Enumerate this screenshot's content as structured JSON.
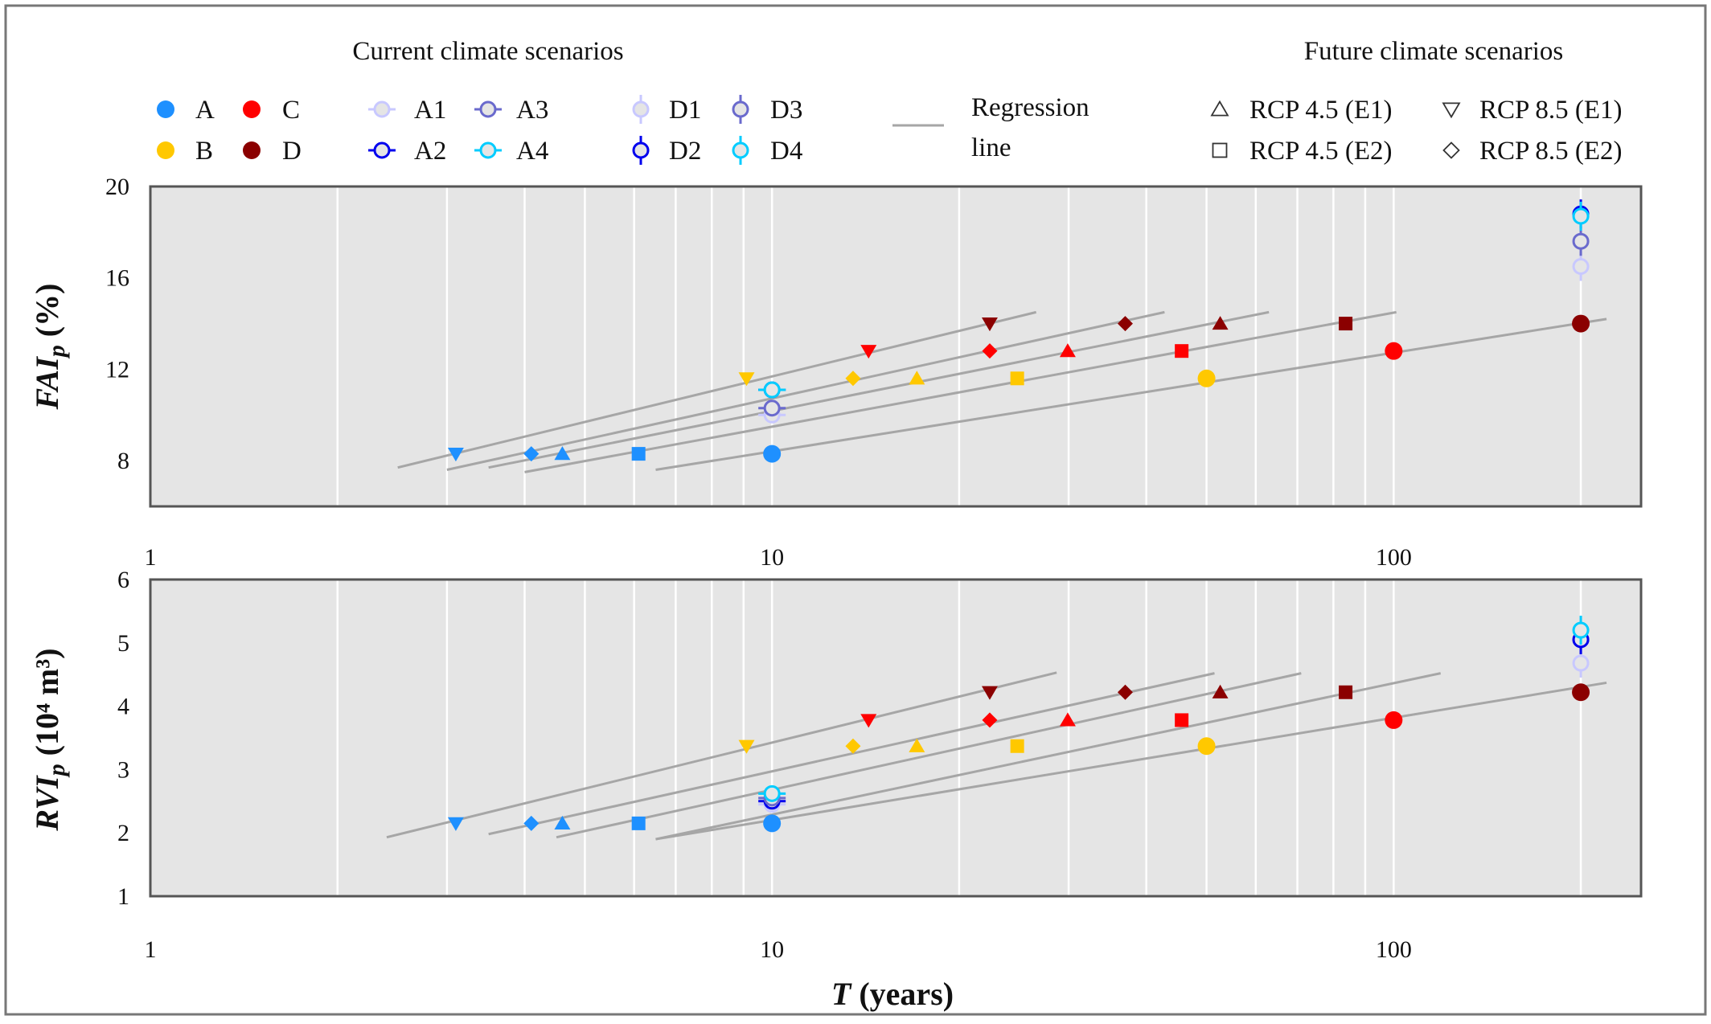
{
  "legend": {
    "current_title": "Current climate scenarios",
    "future_title": "Future climate scenarios",
    "regression_label_1": "Regression",
    "regression_label_2": "line",
    "items": {
      "A": "A",
      "B": "B",
      "C": "C",
      "D": "D",
      "A1": "A1",
      "A2": "A2",
      "A3": "A3",
      "A4": "A4",
      "D1": "D1",
      "D2": "D2",
      "D3": "D3",
      "D4": "D4",
      "rcp45e1": "RCP 4.5 (E1)",
      "rcp85e1": "RCP 8.5 (E1)",
      "rcp45e2": "RCP 4.5 (E2)",
      "rcp85e2": "RCP 8.5 (E2)"
    }
  },
  "colors": {
    "A": "#1E90FF",
    "B": "#FFC800",
    "C": "#FF0000",
    "D": "#8B0000",
    "A1": "#C8C8FF",
    "A2": "#0000EE",
    "A3": "#6A6ACD",
    "A4": "#00CCFF",
    "D1": "#C8C8FF",
    "D2": "#0000EE",
    "D3": "#6A6ACD",
    "D4": "#00CCFF",
    "regression": "#A6A6A6",
    "plot_bg": "#E5E5E5",
    "grid": "#FFFFFF"
  },
  "chart_data": [
    {
      "type": "scatter",
      "ylabel_main": "FAI",
      "ylabel_sub": "p",
      "ylabel_rest": " (%)",
      "xscale": "log",
      "xlim": [
        1,
        250
      ],
      "ylim": [
        6,
        20
      ],
      "yticks": [
        8,
        12,
        16,
        20
      ],
      "xticks": [
        1,
        10,
        100
      ],
      "grid": true,
      "points": [
        {
          "group": "A",
          "marker": "circle",
          "T": 10,
          "y": 8.3
        },
        {
          "group": "B",
          "marker": "circle",
          "T": 50,
          "y": 11.6
        },
        {
          "group": "C",
          "marker": "circle",
          "T": 100,
          "y": 12.8
        },
        {
          "group": "D",
          "marker": "circle",
          "T": 200,
          "y": 14.0
        },
        {
          "group": "A",
          "marker": "triangle-up",
          "T": 4.6,
          "y": 8.3
        },
        {
          "group": "A",
          "marker": "square",
          "T": 6.1,
          "y": 8.3
        },
        {
          "group": "A",
          "marker": "diamond",
          "T": 4.1,
          "y": 8.3
        },
        {
          "group": "A",
          "marker": "triangle-down",
          "T": 3.1,
          "y": 8.3
        },
        {
          "group": "B",
          "marker": "triangle-up",
          "T": 17.1,
          "y": 11.6
        },
        {
          "group": "B",
          "marker": "square",
          "T": 24.8,
          "y": 11.6
        },
        {
          "group": "B",
          "marker": "diamond",
          "T": 13.5,
          "y": 11.6
        },
        {
          "group": "B",
          "marker": "triangle-down",
          "T": 9.1,
          "y": 11.6
        },
        {
          "group": "C",
          "marker": "triangle-up",
          "T": 29.9,
          "y": 12.8
        },
        {
          "group": "C",
          "marker": "square",
          "T": 45.6,
          "y": 12.8
        },
        {
          "group": "C",
          "marker": "diamond",
          "T": 22.4,
          "y": 12.8
        },
        {
          "group": "C",
          "marker": "triangle-down",
          "T": 14.3,
          "y": 12.8
        },
        {
          "group": "D",
          "marker": "triangle-up",
          "T": 52.6,
          "y": 14.0
        },
        {
          "group": "D",
          "marker": "square",
          "T": 83.7,
          "y": 14.0
        },
        {
          "group": "D",
          "marker": "diamond",
          "T": 37.0,
          "y": 14.0
        },
        {
          "group": "D",
          "marker": "triangle-down",
          "T": 22.4,
          "y": 14.0
        },
        {
          "group": "A1",
          "marker": "open-circle-h",
          "T": 10,
          "y": 10.0
        },
        {
          "group": "A3",
          "marker": "open-circle-h",
          "T": 10,
          "y": 10.3
        },
        {
          "group": "A2",
          "marker": "open-circle-h",
          "T": 10,
          "y": 11.1
        },
        {
          "group": "A4",
          "marker": "open-circle-h",
          "T": 10,
          "y": 11.1
        },
        {
          "group": "D1",
          "marker": "open-circle-v",
          "T": 200,
          "y": 16.5
        },
        {
          "group": "D3",
          "marker": "open-circle-v",
          "T": 200,
          "y": 17.6
        },
        {
          "group": "D2",
          "marker": "open-circle-v",
          "T": 200,
          "y": 18.8
        },
        {
          "group": "D4",
          "marker": "open-circle-v",
          "T": 200,
          "y": 18.7
        }
      ],
      "regression_lines": [
        {
          "T": [
            2.5,
            26.6
          ],
          "y": [
            7.7,
            14.5
          ]
        },
        {
          "T": [
            3.0,
            42.8
          ],
          "y": [
            7.6,
            14.5
          ]
        },
        {
          "T": [
            3.5,
            63
          ],
          "y": [
            7.7,
            14.5
          ]
        },
        {
          "T": [
            4.0,
            101
          ],
          "y": [
            7.5,
            14.5
          ]
        },
        {
          "T": [
            6.5,
            220
          ],
          "y": [
            7.6,
            14.2
          ]
        }
      ]
    },
    {
      "type": "scatter",
      "ylabel_main": "RVI",
      "ylabel_sub": "p",
      "ylabel_rest": " (10⁴ m³)",
      "xlabel_main": "T",
      "xlabel_rest": " (years)",
      "xscale": "log",
      "xlim": [
        1,
        250
      ],
      "ylim": [
        1,
        6
      ],
      "yticks": [
        1,
        2,
        3,
        4,
        5,
        6
      ],
      "xticks": [
        1,
        10,
        100
      ],
      "grid": true,
      "points": [
        {
          "group": "A",
          "marker": "circle",
          "T": 10,
          "y": 2.15
        },
        {
          "group": "B",
          "marker": "circle",
          "T": 50,
          "y": 3.37
        },
        {
          "group": "C",
          "marker": "circle",
          "T": 100,
          "y": 3.78
        },
        {
          "group": "D",
          "marker": "circle",
          "T": 200,
          "y": 4.22
        },
        {
          "group": "A",
          "marker": "triangle-up",
          "T": 4.6,
          "y": 2.15
        },
        {
          "group": "A",
          "marker": "square",
          "T": 6.1,
          "y": 2.15
        },
        {
          "group": "A",
          "marker": "diamond",
          "T": 4.1,
          "y": 2.15
        },
        {
          "group": "A",
          "marker": "triangle-down",
          "T": 3.1,
          "y": 2.15
        },
        {
          "group": "B",
          "marker": "triangle-up",
          "T": 17.1,
          "y": 3.37
        },
        {
          "group": "B",
          "marker": "square",
          "T": 24.8,
          "y": 3.37
        },
        {
          "group": "B",
          "marker": "diamond",
          "T": 13.5,
          "y": 3.37
        },
        {
          "group": "B",
          "marker": "triangle-down",
          "T": 9.1,
          "y": 3.37
        },
        {
          "group": "C",
          "marker": "triangle-up",
          "T": 29.9,
          "y": 3.78
        },
        {
          "group": "C",
          "marker": "square",
          "T": 45.6,
          "y": 3.78
        },
        {
          "group": "C",
          "marker": "diamond",
          "T": 22.4,
          "y": 3.78
        },
        {
          "group": "C",
          "marker": "triangle-down",
          "T": 14.3,
          "y": 3.78
        },
        {
          "group": "D",
          "marker": "triangle-up",
          "T": 52.6,
          "y": 4.22
        },
        {
          "group": "D",
          "marker": "square",
          "T": 83.7,
          "y": 4.22
        },
        {
          "group": "D",
          "marker": "diamond",
          "T": 37.0,
          "y": 4.22
        },
        {
          "group": "D",
          "marker": "triangle-down",
          "T": 22.4,
          "y": 4.22
        },
        {
          "group": "A1",
          "marker": "open-circle-h",
          "T": 10,
          "y": 2.45
        },
        {
          "group": "A2",
          "marker": "open-circle-h",
          "T": 10,
          "y": 2.5
        },
        {
          "group": "A3",
          "marker": "open-circle-h",
          "T": 10,
          "y": 2.55
        },
        {
          "group": "A4",
          "marker": "open-circle-h",
          "T": 10,
          "y": 2.62
        },
        {
          "group": "D1",
          "marker": "open-circle-v",
          "T": 200,
          "y": 4.68
        },
        {
          "group": "D3",
          "marker": "open-circle-v",
          "T": 200,
          "y": 5.05
        },
        {
          "group": "D2",
          "marker": "open-circle-v",
          "T": 200,
          "y": 5.05
        },
        {
          "group": "D4",
          "marker": "open-circle-v",
          "T": 200,
          "y": 5.2
        }
      ],
      "regression_lines": [
        {
          "T": [
            2.4,
            28.7
          ],
          "y": [
            1.93,
            4.53
          ]
        },
        {
          "T": [
            3.5,
            51.5
          ],
          "y": [
            1.98,
            4.52
          ]
        },
        {
          "T": [
            4.5,
            71
          ],
          "y": [
            1.93,
            4.52
          ]
        },
        {
          "T": [
            6.5,
            119
          ],
          "y": [
            1.9,
            4.52
          ]
        },
        {
          "T": [
            6.5,
            220
          ],
          "y": [
            1.9,
            4.37
          ]
        }
      ]
    }
  ]
}
